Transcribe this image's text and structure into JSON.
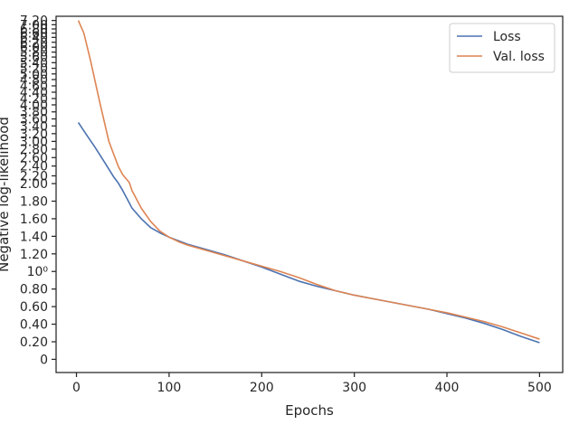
{
  "chart_data": {
    "type": "line",
    "xlabel": "Epochs",
    "ylabel": "Negative log-likelihood",
    "xlim": [
      -22,
      525
    ],
    "ylim": [
      -0.15,
      7.4
    ],
    "x_ticks": [
      0,
      100,
      200,
      300,
      400,
      500
    ],
    "y_ticks": [
      {
        "value": 0,
        "label": "0"
      },
      {
        "value": 0.2,
        "label": "0.20"
      },
      {
        "value": 0.4,
        "label": "0.40"
      },
      {
        "value": 0.6,
        "label": "0.60"
      },
      {
        "value": 0.8,
        "label": "0.80"
      },
      {
        "value": 1.0,
        "label": "10⁰"
      },
      {
        "value": 1.2,
        "label": "1.20"
      },
      {
        "value": 1.4,
        "label": "1.40"
      },
      {
        "value": 1.6,
        "label": "1.60"
      },
      {
        "value": 1.8,
        "label": "1.80"
      },
      {
        "value": 2.0,
        "label": "2.00"
      },
      {
        "value": 2.2,
        "label": "2.20"
      },
      {
        "value": 2.4,
        "label": "2.40"
      },
      {
        "value": 2.6,
        "label": "2.60"
      },
      {
        "value": 2.8,
        "label": "2.80"
      },
      {
        "value": 3.0,
        "label": "3.00"
      },
      {
        "value": 3.2,
        "label": "3.20"
      },
      {
        "value": 3.4,
        "label": "3.40"
      },
      {
        "value": 3.6,
        "label": "3.60"
      },
      {
        "value": 3.8,
        "label": "3.80"
      },
      {
        "value": 4.0,
        "label": "4.00"
      },
      {
        "value": 4.2,
        "label": "4.20"
      },
      {
        "value": 4.4,
        "label": "4.40"
      },
      {
        "value": 4.6,
        "label": "4.60"
      },
      {
        "value": 4.8,
        "label": "4.80"
      },
      {
        "value": 5.0,
        "label": "5.00"
      },
      {
        "value": 5.2,
        "label": "5.20"
      },
      {
        "value": 5.4,
        "label": "5.40"
      },
      {
        "value": 5.6,
        "label": "5.60"
      },
      {
        "value": 5.8,
        "label": "5.80"
      },
      {
        "value": 6.0,
        "label": "6.00"
      },
      {
        "value": 6.2,
        "label": "6.20"
      },
      {
        "value": 6.4,
        "label": "6.40"
      },
      {
        "value": 6.6,
        "label": "6.60"
      },
      {
        "value": 6.8,
        "label": "6.80"
      },
      {
        "value": 7.0,
        "label": "7.00"
      },
      {
        "value": 7.2,
        "label": "7.20"
      }
    ],
    "y_tick_positions": [
      {
        "value": 0,
        "pos": 0.0
      },
      {
        "value": 0.2,
        "pos": 0.2
      },
      {
        "value": 0.4,
        "pos": 0.4
      },
      {
        "value": 0.6,
        "pos": 0.6
      },
      {
        "value": 0.8,
        "pos": 0.8
      },
      {
        "value": 1.0,
        "pos": 1.0
      },
      {
        "value": 1.2,
        "pos": 1.2
      },
      {
        "value": 1.4,
        "pos": 1.4
      },
      {
        "value": 1.6,
        "pos": 1.6
      },
      {
        "value": 1.8,
        "pos": 1.8
      },
      {
        "value": 2.0,
        "pos": 2.0
      },
      {
        "value": 2.2,
        "pos": 2.088
      },
      {
        "value": 2.4,
        "pos": 2.2
      },
      {
        "value": 2.6,
        "pos": 2.296
      },
      {
        "value": 2.8,
        "pos": 2.392
      },
      {
        "value": 3.0,
        "pos": 2.48
      },
      {
        "value": 3.2,
        "pos": 2.568
      },
      {
        "value": 3.4,
        "pos": 2.656
      },
      {
        "value": 3.6,
        "pos": 2.736
      },
      {
        "value": 3.8,
        "pos": 2.816
      },
      {
        "value": 4.0,
        "pos": 2.896
      },
      {
        "value": 4.2,
        "pos": 2.968
      },
      {
        "value": 4.4,
        "pos": 3.04
      },
      {
        "value": 4.6,
        "pos": 3.112
      },
      {
        "value": 4.8,
        "pos": 3.184
      },
      {
        "value": 5.0,
        "pos": 3.248
      },
      {
        "value": 5.2,
        "pos": 3.312
      },
      {
        "value": 5.4,
        "pos": 3.376
      },
      {
        "value": 5.6,
        "pos": 3.44
      },
      {
        "value": 5.8,
        "pos": 3.496
      },
      {
        "value": 6.0,
        "pos": 3.552
      },
      {
        "value": 6.2,
        "pos": 3.608
      },
      {
        "value": 6.4,
        "pos": 3.664
      },
      {
        "value": 6.6,
        "pos": 3.712
      },
      {
        "value": 6.8,
        "pos": 3.76
      },
      {
        "value": 7.0,
        "pos": 3.808
      },
      {
        "value": 7.2,
        "pos": 3.856
      }
    ],
    "legend_placement": "top-right",
    "grid": false,
    "series": [
      {
        "name": "Loss",
        "color": "#4c72b0",
        "x": [
          2,
          10,
          20,
          30,
          40,
          45,
          50,
          55,
          60,
          70,
          80,
          90,
          100,
          110,
          120,
          140,
          160,
          180,
          200,
          220,
          240,
          260,
          280,
          300,
          320,
          340,
          360,
          380,
          400,
          420,
          440,
          460,
          480,
          500
        ],
        "y": [
          3.5,
          3.2,
          2.85,
          2.5,
          2.18,
          2.02,
          1.92,
          1.82,
          1.72,
          1.6,
          1.5,
          1.44,
          1.39,
          1.35,
          1.31,
          1.25,
          1.19,
          1.12,
          1.05,
          0.97,
          0.89,
          0.83,
          0.78,
          0.73,
          0.69,
          0.65,
          0.61,
          0.57,
          0.52,
          0.47,
          0.41,
          0.34,
          0.26,
          0.19
        ]
      },
      {
        "name": "Val. loss",
        "color": "#dd8452",
        "x": [
          2,
          8,
          15,
          25,
          35,
          45,
          50,
          57,
          60,
          70,
          80,
          90,
          100,
          110,
          120,
          140,
          160,
          180,
          200,
          220,
          240,
          260,
          280,
          300,
          320,
          340,
          360,
          380,
          400,
          420,
          440,
          460,
          480,
          500
        ],
        "y": [
          7.2,
          6.6,
          5.5,
          4.1,
          3.0,
          2.4,
          2.22,
          2.03,
          1.92,
          1.72,
          1.57,
          1.46,
          1.39,
          1.34,
          1.3,
          1.24,
          1.18,
          1.12,
          1.06,
          1.0,
          0.93,
          0.85,
          0.78,
          0.73,
          0.69,
          0.65,
          0.61,
          0.57,
          0.53,
          0.48,
          0.43,
          0.37,
          0.3,
          0.23
        ]
      }
    ]
  }
}
